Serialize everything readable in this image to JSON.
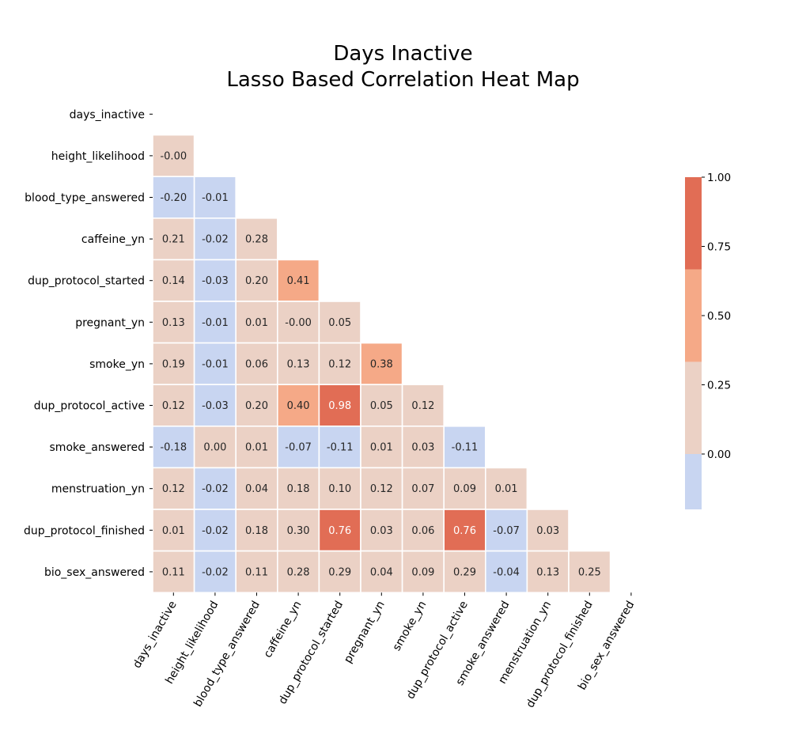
{
  "chart_data": {
    "type": "heatmap",
    "title": [
      "Days Inactive",
      "Lasso Based Correlation Heat Map"
    ],
    "variables": [
      "days_inactive",
      "height_likelihood",
      "blood_type_answered",
      "caffeine_yn",
      "dup_protocol_started",
      "pregnant_yn",
      "smoke_yn",
      "dup_protocol_active",
      "smoke_answered",
      "menstruation_yn",
      "dup_protocol_finished",
      "bio_sex_answered"
    ],
    "mask": "upper-triangle-including-diagonal",
    "values": [
      [],
      [
        "-0.00"
      ],
      [
        "-0.20",
        "-0.01"
      ],
      [
        "0.21",
        "-0.02",
        "0.28"
      ],
      [
        "0.14",
        "-0.03",
        "0.20",
        "0.41"
      ],
      [
        "0.13",
        "-0.01",
        "0.01",
        "-0.00",
        "0.05"
      ],
      [
        "0.19",
        "-0.01",
        "0.06",
        "0.13",
        "0.12",
        "0.38"
      ],
      [
        "0.12",
        "-0.03",
        "0.20",
        "0.40",
        "0.98",
        "0.05",
        "0.12"
      ],
      [
        "-0.18",
        "0.00",
        "0.01",
        "-0.07",
        "-0.11",
        "0.01",
        "0.03",
        "-0.11"
      ],
      [
        "0.12",
        "-0.02",
        "0.04",
        "0.18",
        "0.10",
        "0.12",
        "0.07",
        "0.09",
        "0.01"
      ],
      [
        "0.01",
        "-0.02",
        "0.18",
        "0.30",
        "0.76",
        "0.03",
        "0.06",
        "0.76",
        "-0.07",
        "0.03"
      ],
      [
        "0.11",
        "-0.02",
        "0.11",
        "0.28",
        "0.29",
        "0.04",
        "0.09",
        "0.29",
        "-0.04",
        "0.13",
        "0.25"
      ]
    ],
    "colorbar": {
      "range": [
        -0.2,
        1.0
      ],
      "ticks": [
        "0.00",
        "0.25",
        "0.50",
        "0.75",
        "1.00"
      ],
      "bands": [
        {
          "from": -0.2,
          "to": 0.0,
          "color": "#c8d5f1"
        },
        {
          "from": 0.0,
          "to": 0.333,
          "color": "#ebd1c5"
        },
        {
          "from": 0.333,
          "to": 0.667,
          "color": "#f5a987"
        },
        {
          "from": 0.667,
          "to": 1.0,
          "color": "#e16d55"
        }
      ]
    },
    "grid": false,
    "cell_border_color": "#ffffff"
  }
}
